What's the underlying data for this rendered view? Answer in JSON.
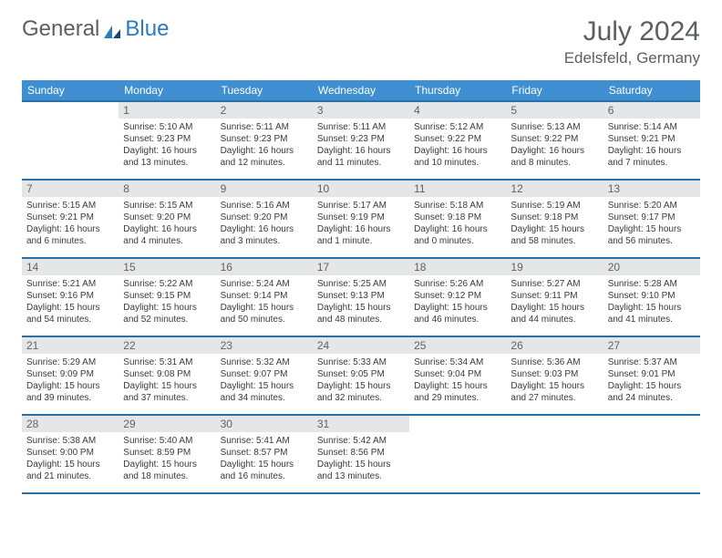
{
  "logo": {
    "part1": "General",
    "part2": "Blue"
  },
  "title": "July 2024",
  "location": "Edelsfeld, Germany",
  "weekdays": [
    "Sunday",
    "Monday",
    "Tuesday",
    "Wednesday",
    "Thursday",
    "Friday",
    "Saturday"
  ],
  "colors": {
    "header_bg": "#3f8fd1",
    "header_border": "#2b6fa8",
    "daynum_bg": "#e4e6e8",
    "text": "#3a3a3a",
    "title_color": "#5a5f64",
    "logo_blue": "#2b7bbf"
  },
  "grid": [
    [
      null,
      {
        "n": "1",
        "sr": "Sunrise: 5:10 AM",
        "ss": "Sunset: 9:23 PM",
        "d1": "Daylight: 16 hours",
        "d2": "and 13 minutes."
      },
      {
        "n": "2",
        "sr": "Sunrise: 5:11 AM",
        "ss": "Sunset: 9:23 PM",
        "d1": "Daylight: 16 hours",
        "d2": "and 12 minutes."
      },
      {
        "n": "3",
        "sr": "Sunrise: 5:11 AM",
        "ss": "Sunset: 9:23 PM",
        "d1": "Daylight: 16 hours",
        "d2": "and 11 minutes."
      },
      {
        "n": "4",
        "sr": "Sunrise: 5:12 AM",
        "ss": "Sunset: 9:22 PM",
        "d1": "Daylight: 16 hours",
        "d2": "and 10 minutes."
      },
      {
        "n": "5",
        "sr": "Sunrise: 5:13 AM",
        "ss": "Sunset: 9:22 PM",
        "d1": "Daylight: 16 hours",
        "d2": "and 8 minutes."
      },
      {
        "n": "6",
        "sr": "Sunrise: 5:14 AM",
        "ss": "Sunset: 9:21 PM",
        "d1": "Daylight: 16 hours",
        "d2": "and 7 minutes."
      }
    ],
    [
      {
        "n": "7",
        "sr": "Sunrise: 5:15 AM",
        "ss": "Sunset: 9:21 PM",
        "d1": "Daylight: 16 hours",
        "d2": "and 6 minutes."
      },
      {
        "n": "8",
        "sr": "Sunrise: 5:15 AM",
        "ss": "Sunset: 9:20 PM",
        "d1": "Daylight: 16 hours",
        "d2": "and 4 minutes."
      },
      {
        "n": "9",
        "sr": "Sunrise: 5:16 AM",
        "ss": "Sunset: 9:20 PM",
        "d1": "Daylight: 16 hours",
        "d2": "and 3 minutes."
      },
      {
        "n": "10",
        "sr": "Sunrise: 5:17 AM",
        "ss": "Sunset: 9:19 PM",
        "d1": "Daylight: 16 hours",
        "d2": "and 1 minute."
      },
      {
        "n": "11",
        "sr": "Sunrise: 5:18 AM",
        "ss": "Sunset: 9:18 PM",
        "d1": "Daylight: 16 hours",
        "d2": "and 0 minutes."
      },
      {
        "n": "12",
        "sr": "Sunrise: 5:19 AM",
        "ss": "Sunset: 9:18 PM",
        "d1": "Daylight: 15 hours",
        "d2": "and 58 minutes."
      },
      {
        "n": "13",
        "sr": "Sunrise: 5:20 AM",
        "ss": "Sunset: 9:17 PM",
        "d1": "Daylight: 15 hours",
        "d2": "and 56 minutes."
      }
    ],
    [
      {
        "n": "14",
        "sr": "Sunrise: 5:21 AM",
        "ss": "Sunset: 9:16 PM",
        "d1": "Daylight: 15 hours",
        "d2": "and 54 minutes."
      },
      {
        "n": "15",
        "sr": "Sunrise: 5:22 AM",
        "ss": "Sunset: 9:15 PM",
        "d1": "Daylight: 15 hours",
        "d2": "and 52 minutes."
      },
      {
        "n": "16",
        "sr": "Sunrise: 5:24 AM",
        "ss": "Sunset: 9:14 PM",
        "d1": "Daylight: 15 hours",
        "d2": "and 50 minutes."
      },
      {
        "n": "17",
        "sr": "Sunrise: 5:25 AM",
        "ss": "Sunset: 9:13 PM",
        "d1": "Daylight: 15 hours",
        "d2": "and 48 minutes."
      },
      {
        "n": "18",
        "sr": "Sunrise: 5:26 AM",
        "ss": "Sunset: 9:12 PM",
        "d1": "Daylight: 15 hours",
        "d2": "and 46 minutes."
      },
      {
        "n": "19",
        "sr": "Sunrise: 5:27 AM",
        "ss": "Sunset: 9:11 PM",
        "d1": "Daylight: 15 hours",
        "d2": "and 44 minutes."
      },
      {
        "n": "20",
        "sr": "Sunrise: 5:28 AM",
        "ss": "Sunset: 9:10 PM",
        "d1": "Daylight: 15 hours",
        "d2": "and 41 minutes."
      }
    ],
    [
      {
        "n": "21",
        "sr": "Sunrise: 5:29 AM",
        "ss": "Sunset: 9:09 PM",
        "d1": "Daylight: 15 hours",
        "d2": "and 39 minutes."
      },
      {
        "n": "22",
        "sr": "Sunrise: 5:31 AM",
        "ss": "Sunset: 9:08 PM",
        "d1": "Daylight: 15 hours",
        "d2": "and 37 minutes."
      },
      {
        "n": "23",
        "sr": "Sunrise: 5:32 AM",
        "ss": "Sunset: 9:07 PM",
        "d1": "Daylight: 15 hours",
        "d2": "and 34 minutes."
      },
      {
        "n": "24",
        "sr": "Sunrise: 5:33 AM",
        "ss": "Sunset: 9:05 PM",
        "d1": "Daylight: 15 hours",
        "d2": "and 32 minutes."
      },
      {
        "n": "25",
        "sr": "Sunrise: 5:34 AM",
        "ss": "Sunset: 9:04 PM",
        "d1": "Daylight: 15 hours",
        "d2": "and 29 minutes."
      },
      {
        "n": "26",
        "sr": "Sunrise: 5:36 AM",
        "ss": "Sunset: 9:03 PM",
        "d1": "Daylight: 15 hours",
        "d2": "and 27 minutes."
      },
      {
        "n": "27",
        "sr": "Sunrise: 5:37 AM",
        "ss": "Sunset: 9:01 PM",
        "d1": "Daylight: 15 hours",
        "d2": "and 24 minutes."
      }
    ],
    [
      {
        "n": "28",
        "sr": "Sunrise: 5:38 AM",
        "ss": "Sunset: 9:00 PM",
        "d1": "Daylight: 15 hours",
        "d2": "and 21 minutes."
      },
      {
        "n": "29",
        "sr": "Sunrise: 5:40 AM",
        "ss": "Sunset: 8:59 PM",
        "d1": "Daylight: 15 hours",
        "d2": "and 18 minutes."
      },
      {
        "n": "30",
        "sr": "Sunrise: 5:41 AM",
        "ss": "Sunset: 8:57 PM",
        "d1": "Daylight: 15 hours",
        "d2": "and 16 minutes."
      },
      {
        "n": "31",
        "sr": "Sunrise: 5:42 AM",
        "ss": "Sunset: 8:56 PM",
        "d1": "Daylight: 15 hours",
        "d2": "and 13 minutes."
      },
      null,
      null,
      null
    ]
  ]
}
